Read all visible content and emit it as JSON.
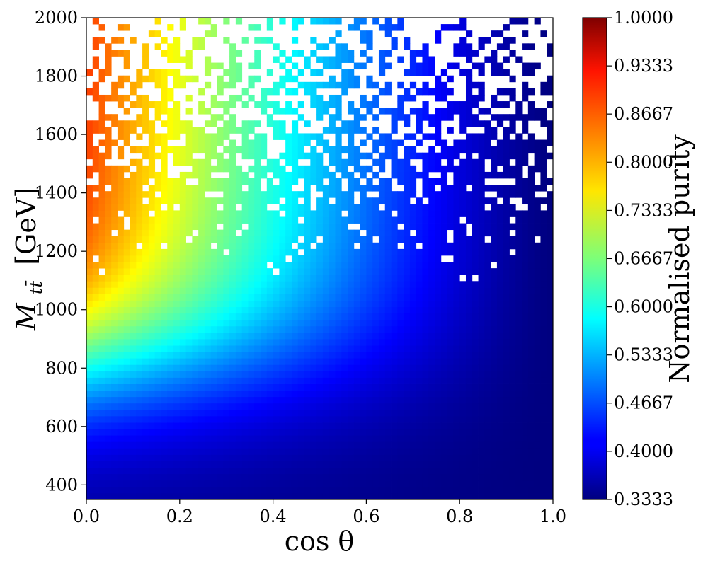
{
  "chart_data": {
    "type": "heatmap",
    "title": "",
    "xlabel": "cos θ",
    "ylabel_main": "M",
    "ylabel_sub": "tt̄",
    "ylabel_unit": "[GeV]",
    "xlim": [
      0.0,
      1.0
    ],
    "ylim": [
      350,
      2000
    ],
    "x_bins": 75,
    "y_bins": 75,
    "xticks": [
      0.0,
      0.2,
      0.4,
      0.6,
      0.8,
      1.0
    ],
    "xtick_labels": [
      "0.0",
      "0.2",
      "0.4",
      "0.6",
      "0.8",
      "1.0"
    ],
    "yticks": [
      400,
      600,
      800,
      1000,
      1200,
      1400,
      1600,
      1800,
      2000
    ],
    "ytick_labels": [
      "400",
      "600",
      "800",
      "1000",
      "1200",
      "1400",
      "1600",
      "1800",
      "2000"
    ],
    "colormap": "jet",
    "colorbar": {
      "label": "Normalised purity",
      "min": 0.3333,
      "max": 1.0,
      "ticks": [
        0.3333,
        0.4,
        0.4667,
        0.5333,
        0.6,
        0.6667,
        0.7333,
        0.8,
        0.8667,
        0.9333,
        1.0
      ],
      "tick_labels": [
        "0.3333",
        "0.4000",
        "0.4667",
        "0.5333",
        "0.6000",
        "0.6667",
        "0.7333",
        "0.8000",
        "0.8667",
        "0.9333",
        "1.0000"
      ]
    },
    "purity_model": {
      "description_points": [
        {
          "cos_theta": 0.0,
          "mass": 400,
          "purity": 0.34
        },
        {
          "cos_theta": 0.0,
          "mass": 600,
          "purity": 0.45
        },
        {
          "cos_theta": 0.0,
          "mass": 800,
          "purity": 0.62
        },
        {
          "cos_theta": 0.0,
          "mass": 1000,
          "purity": 0.74
        },
        {
          "cos_theta": 0.0,
          "mass": 1200,
          "purity": 0.79
        },
        {
          "cos_theta": 0.0,
          "mass": 1400,
          "purity": 0.82
        },
        {
          "cos_theta": 0.0,
          "mass": 1800,
          "purity": 0.87
        },
        {
          "cos_theta": 0.5,
          "mass": 1000,
          "purity": 0.52
        },
        {
          "cos_theta": 0.5,
          "mass": 1600,
          "purity": 0.57
        },
        {
          "cos_theta": 1.0,
          "mass": 1000,
          "purity": 0.34
        },
        {
          "cos_theta": 1.0,
          "mass": 2000,
          "purity": 0.36
        }
      ]
    }
  }
}
